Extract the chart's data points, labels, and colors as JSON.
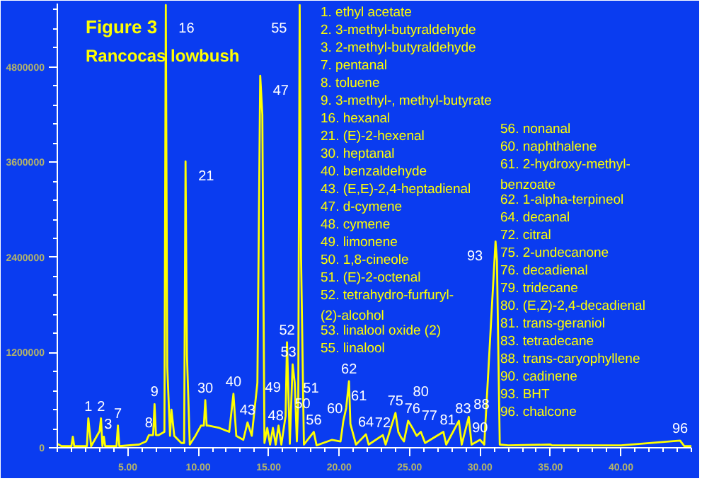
{
  "chart_data": {
    "type": "line",
    "title": "Figure 3",
    "subtitle": "Rancocas lowbush",
    "x": [
      0,
      0.3,
      1.0,
      1.1,
      1.2,
      2.1,
      2.2,
      2.3,
      2.4,
      3.0,
      3.1,
      3.2,
      3.3,
      3.4,
      4.2,
      4.3,
      4.4,
      5.8,
      6.3,
      6.5,
      6.8,
      6.9,
      7.0,
      7.2,
      7.6,
      7.7,
      7.8,
      8.0,
      8.1,
      8.3,
      8.8,
      9.0,
      9.1,
      9.2,
      9.4,
      9.8,
      10.2,
      10.4,
      10.5,
      10.6,
      10.7,
      11.5,
      12.2,
      12.4,
      12.5,
      12.7,
      13.2,
      13.5,
      13.8,
      14.2,
      14.4,
      14.55,
      14.7,
      14.9,
      15.1,
      15.3,
      15.5,
      15.7,
      15.9,
      16.2,
      16.3,
      16.5,
      16.7,
      16.85,
      17.0,
      17.1,
      17.2,
      17.3,
      17.5,
      18.2,
      18.4,
      19.5,
      20.1,
      20.3,
      20.5,
      20.7,
      20.8,
      21.2,
      21.9,
      22.1,
      23.1,
      23.3,
      24.0,
      24.2,
      24.4,
      24.6,
      24.9,
      25.2,
      25.5,
      25.8,
      26.1,
      27.4,
      27.6,
      28.5,
      28.7,
      29.2,
      29.4,
      30.0,
      30.3,
      31.1,
      31.2,
      31.4,
      32.0,
      35.0,
      35.1,
      40.0,
      44.2,
      44.5,
      45.0
    ],
    "series": [
      {
        "color": "#ffff00",
        "values": [
          50000,
          20000,
          20000,
          140000,
          20000,
          20000,
          370000,
          200000,
          20000,
          210000,
          370000,
          20000,
          140000,
          20000,
          20000,
          280000,
          20000,
          40000,
          80000,
          160000,
          160000,
          550000,
          160000,
          160000,
          200000,
          5580000,
          1030000,
          150000,
          480000,
          150000,
          60000,
          60000,
          3610000,
          1170000,
          40000,
          150000,
          280000,
          280000,
          600000,
          280000,
          280000,
          250000,
          200000,
          520000,
          680000,
          150000,
          100000,
          320000,
          150000,
          820000,
          4690000,
          4200000,
          60000,
          250000,
          40000,
          250000,
          40000,
          280000,
          40000,
          400000,
          1330000,
          50000,
          1050000,
          820000,
          80000,
          600000,
          5580000,
          2380000,
          40000,
          200000,
          30000,
          100000,
          80000,
          340000,
          500000,
          840000,
          300000,
          40000,
          170000,
          40000,
          160000,
          40000,
          440000,
          200000,
          130000,
          80000,
          340000,
          250000,
          150000,
          200000,
          60000,
          200000,
          40000,
          340000,
          40000,
          390000,
          40000,
          100000,
          40000,
          2600000,
          2360000,
          40000,
          30000,
          40000,
          30000,
          30000,
          90000,
          20000,
          20000
        ]
      }
    ],
    "xlim": [
      0,
      45
    ],
    "ylim": [
      0,
      5600000
    ],
    "xticks": [
      {
        "value": 5,
        "label": "5.00"
      },
      {
        "value": 10,
        "label": "10.00"
      },
      {
        "value": 15,
        "label": "15.00"
      },
      {
        "value": 20,
        "label": "20.00"
      },
      {
        "value": 25,
        "label": "25.00"
      },
      {
        "value": 30,
        "label": "30.00"
      },
      {
        "value": 35,
        "label": "35.00"
      },
      {
        "value": 40,
        "label": "40.00"
      }
    ],
    "yticks": [
      0,
      1200000,
      2400000,
      3600000,
      4800000
    ],
    "grid": false,
    "annotations": [
      {
        "text": "1",
        "x": 2.2,
        "y": 370000
      },
      {
        "text": "2",
        "x": 3.1,
        "y": 370000
      },
      {
        "text": "3",
        "x": 3.3,
        "y": 140000
      },
      {
        "text": "7",
        "x": 4.3,
        "y": 280000
      },
      {
        "text": "8",
        "x": 6.5,
        "y": 160000
      },
      {
        "text": "9",
        "x": 6.9,
        "y": 550000
      },
      {
        "text": "16",
        "x": 7.7,
        "y": 5580000
      },
      {
        "text": "21",
        "x": 9.1,
        "y": 3610000
      },
      {
        "text": "30",
        "x": 10.5,
        "y": 600000
      },
      {
        "text": "40",
        "x": 12.5,
        "y": 680000
      },
      {
        "text": "43",
        "x": 13.5,
        "y": 320000
      },
      {
        "text": "47",
        "x": 14.4,
        "y": 4690000
      },
      {
        "text": "48",
        "x": 14.9,
        "y": 250000
      },
      {
        "text": "49",
        "x": 15.3,
        "y": 250000
      },
      {
        "text": "50",
        "x": 16.2,
        "y": 400000
      },
      {
        "text": "52",
        "x": 16.3,
        "y": 1330000
      },
      {
        "text": "53",
        "x": 16.7,
        "y": 1050000
      },
      {
        "text": "51",
        "x": 17.1,
        "y": 600000
      },
      {
        "text": "55",
        "x": 17.2,
        "y": 5580000
      },
      {
        "text": "56",
        "x": 18.2,
        "y": 200000
      },
      {
        "text": "60",
        "x": 20.3,
        "y": 340000
      },
      {
        "text": "61",
        "x": 20.5,
        "y": 500000
      },
      {
        "text": "62",
        "x": 20.7,
        "y": 840000
      },
      {
        "text": "64",
        "x": 21.9,
        "y": 170000
      },
      {
        "text": "72",
        "x": 23.1,
        "y": 160000
      },
      {
        "text": "75",
        "x": 24.0,
        "y": 440000
      },
      {
        "text": "76",
        "x": 24.9,
        "y": 340000
      },
      {
        "text": "77",
        "x": 25.2,
        "y": 250000
      },
      {
        "text": "80",
        "x": 25.8,
        "y": 200000
      },
      {
        "text": "81",
        "x": 27.4,
        "y": 200000
      },
      {
        "text": "83",
        "x": 28.5,
        "y": 340000
      },
      {
        "text": "88",
        "x": 29.2,
        "y": 390000
      },
      {
        "text": "90",
        "x": 30.0,
        "y": 100000
      },
      {
        "text": "93",
        "x": 31.1,
        "y": 2600000
      },
      {
        "text": "96",
        "x": 44.2,
        "y": 90000
      },
      "1.   ethyl acetate",
      "2.   3-methyl-butyraldehyde",
      "3.   2-methyl-butyraldehyde",
      "7.   pentanal",
      "8.   toluene",
      "9.   3-methyl-, methyl-butyrate",
      "16.  hexanal",
      "21.  (E)-2-hexenal",
      "30.  heptanal",
      "40.  benzaldehyde",
      "43.  (E,E)-2,4-heptadienal",
      "47.  d-cymene",
      "48.  cymene",
      "49.  limonene",
      "50.  1,8-cineole",
      "51.  (E)-2-octenal",
      "52.  tetrahydro-furfuryl-\n       (2)-alcohol",
      "53.  linalool oxide (2)",
      "55.  linalool",
      "56.  nonanal",
      "60.  naphthalene",
      "61.  2-hydroxy-methyl-\n       benzoate",
      "62.  1-alpha-terpineol",
      "64.  decanal",
      "72.  citral",
      "75.  2-undecanone",
      "76.  decadienal",
      "79.  tridecane",
      "80.  (E,Z)-2,4-decadienal",
      "81.  trans-geraniol",
      "83.  tetradecane",
      "88.  trans-caryophyllene",
      "90.  cadinene",
      "93.  BHT",
      "96.  chalcone"
    ]
  }
}
